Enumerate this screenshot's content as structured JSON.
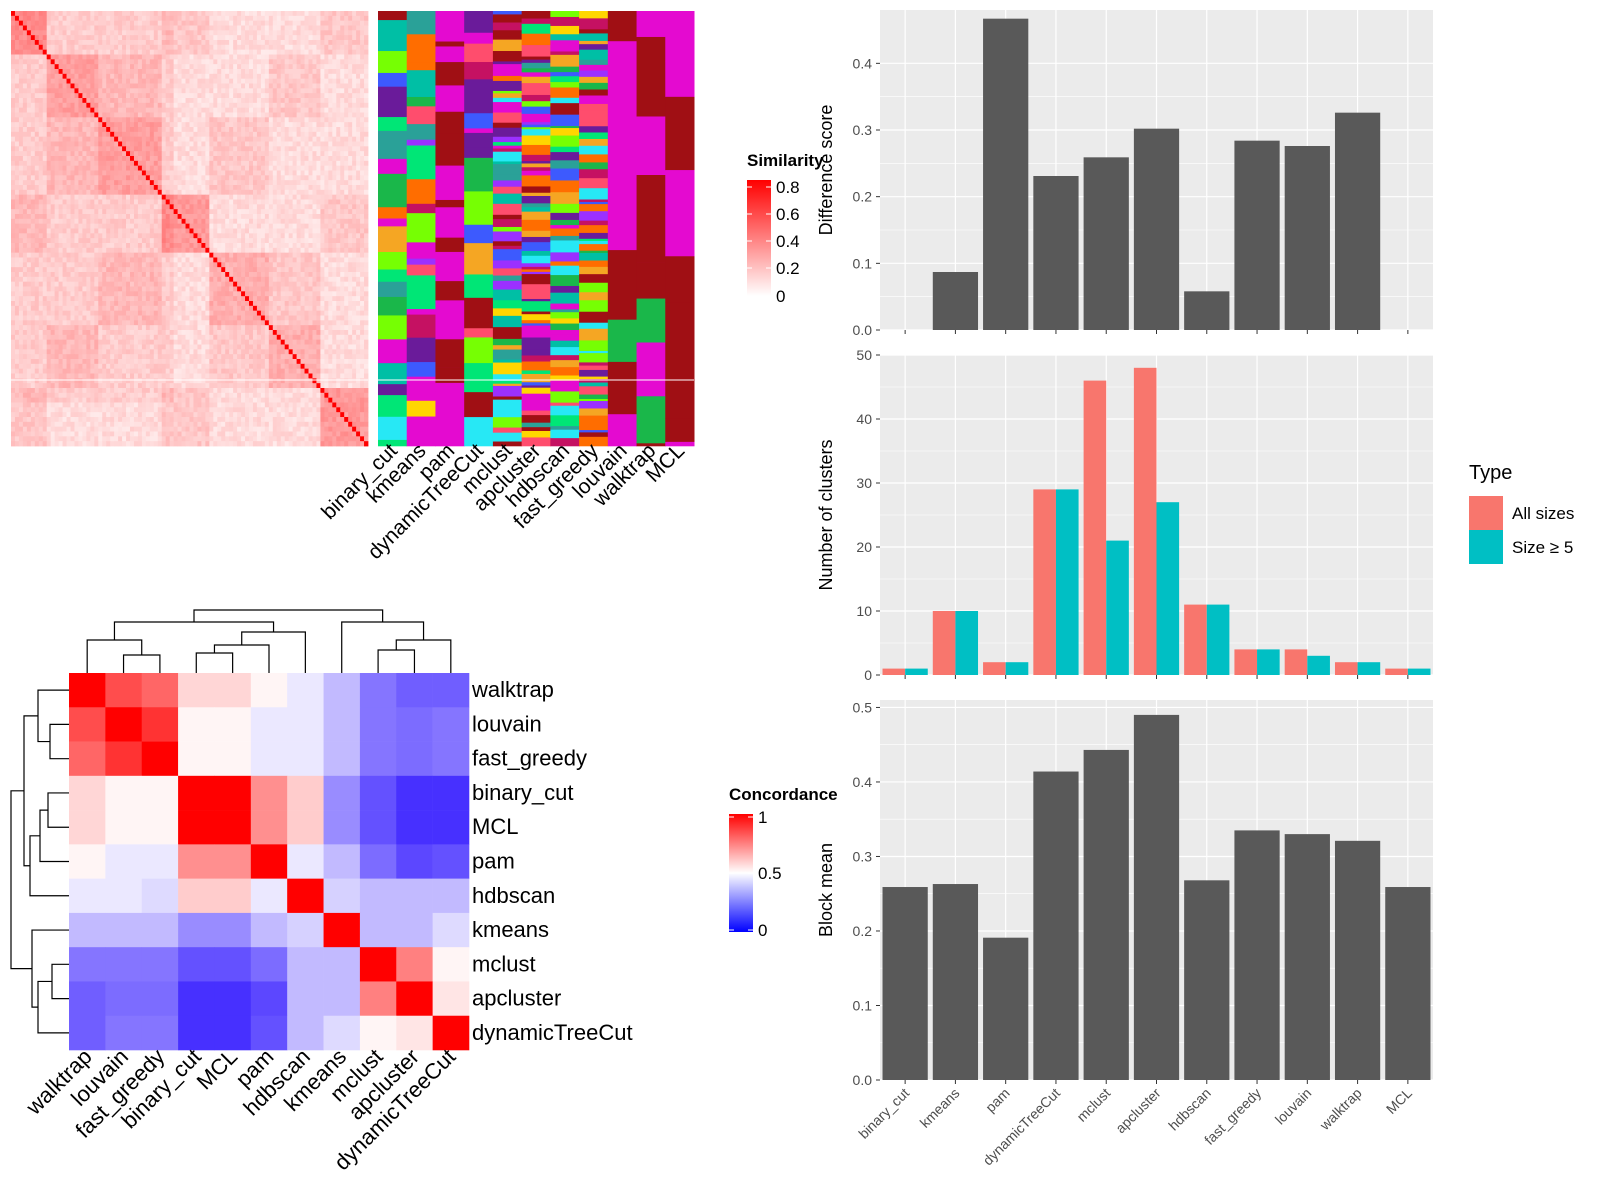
{
  "similarity_legend": {
    "title": "Similarity",
    "ticks": [
      "0.8",
      "0.6",
      "0.4",
      "0.2",
      "0"
    ]
  },
  "concordance_legend": {
    "title": "Concordance",
    "ticks": [
      "1",
      "0.5",
      "0"
    ]
  },
  "type_legend": {
    "title": "Type",
    "items": [
      "All sizes",
      "Size ≥ 5"
    ]
  },
  "colors": {
    "bar_dark": "#595959",
    "all_sizes": "#F8766D",
    "size5": "#00BFC4",
    "panel_bg": "#EBEBEB",
    "grid": "#FFFFFF",
    "sim_high": "#FF0000",
    "sim_low": "#FFFFFF",
    "conc_high": "#FF0000",
    "conc_mid": "#FFFFFF",
    "conc_low": "#0000FF",
    "cluster_bg": "#E40AD0",
    "cluster_dark": "#A00F14"
  },
  "chart_data": [
    {
      "type": "heatmap",
      "title": "",
      "name": "similarity-heatmap",
      "legend_title": "Similarity",
      "color_range": [
        0,
        0.85
      ]
    },
    {
      "type": "heatmap",
      "name": "cluster-assignment-heatmap",
      "columns": [
        "binary_cut",
        "kmeans",
        "pam",
        "dynamicTreeCut",
        "mclust",
        "apcluster",
        "hdbscan",
        "fast_greedy",
        "louvain",
        "walktrap",
        "MCL"
      ]
    },
    {
      "type": "heatmap",
      "name": "concordance-heatmap",
      "legend_title": "Concordance",
      "rows": [
        "walktrap",
        "louvain",
        "fast_greedy",
        "binary_cut",
        "MCL",
        "pam",
        "hdbscan",
        "kmeans",
        "mclust",
        "apcluster",
        "dynamicTreeCut"
      ],
      "cols": [
        "walktrap",
        "louvain",
        "fast_greedy",
        "binary_cut",
        "MCL",
        "pam",
        "hdbscan",
        "kmeans",
        "mclust",
        "apcluster",
        "dynamicTreeCut"
      ],
      "values": [
        [
          1.0,
          0.85,
          0.8,
          0.58,
          0.58,
          0.52,
          0.45,
          0.35,
          0.2,
          0.15,
          0.15
        ],
        [
          0.85,
          1.0,
          0.9,
          0.52,
          0.52,
          0.45,
          0.45,
          0.35,
          0.2,
          0.18,
          0.2
        ],
        [
          0.8,
          0.9,
          1.0,
          0.52,
          0.52,
          0.45,
          0.45,
          0.35,
          0.2,
          0.18,
          0.2
        ],
        [
          0.58,
          0.52,
          0.52,
          1.0,
          1.0,
          0.72,
          0.6,
          0.25,
          0.12,
          0.05,
          0.05
        ],
        [
          0.58,
          0.52,
          0.52,
          1.0,
          1.0,
          0.72,
          0.6,
          0.25,
          0.12,
          0.05,
          0.05
        ],
        [
          0.52,
          0.45,
          0.45,
          0.72,
          0.72,
          1.0,
          0.45,
          0.35,
          0.18,
          0.1,
          0.12
        ],
        [
          0.45,
          0.45,
          0.42,
          0.6,
          0.6,
          0.45,
          1.0,
          0.4,
          0.35,
          0.35,
          0.35
        ],
        [
          0.35,
          0.35,
          0.35,
          0.25,
          0.25,
          0.35,
          0.4,
          1.0,
          0.35,
          0.35,
          0.42
        ],
        [
          0.2,
          0.2,
          0.2,
          0.12,
          0.12,
          0.18,
          0.35,
          0.35,
          1.0,
          0.75,
          0.52
        ],
        [
          0.15,
          0.18,
          0.18,
          0.05,
          0.05,
          0.1,
          0.35,
          0.35,
          0.75,
          1.0,
          0.55
        ],
        [
          0.15,
          0.2,
          0.2,
          0.05,
          0.05,
          0.12,
          0.35,
          0.42,
          0.52,
          0.55,
          1.0
        ]
      ],
      "color_range": [
        0,
        1
      ]
    },
    {
      "type": "bar",
      "name": "difference-score",
      "categories": [
        "binary_cut",
        "kmeans",
        "pam",
        "dynamicTreeCut",
        "mclust",
        "apcluster",
        "hdbscan",
        "fast_greedy",
        "louvain",
        "walktrap",
        "MCL"
      ],
      "values": [
        0,
        0.087,
        0.467,
        0.231,
        0.259,
        0.302,
        0.058,
        0.284,
        0.276,
        0.326,
        0
      ],
      "xlabel": "",
      "ylabel": "Difference score",
      "ylim": [
        0,
        0.48
      ],
      "yticks": [
        0.0,
        0.1,
        0.2,
        0.3,
        0.4
      ],
      "ytick_labels": [
        "0.0",
        "0.1",
        "0.2",
        "0.3",
        "0.4"
      ]
    },
    {
      "type": "bar",
      "name": "number-of-clusters",
      "categories": [
        "binary_cut",
        "kmeans",
        "pam",
        "dynamicTreeCut",
        "mclust",
        "apcluster",
        "hdbscan",
        "fast_greedy",
        "louvain",
        "walktrap",
        "MCL"
      ],
      "series": [
        {
          "name": "All sizes",
          "values": [
            1,
            10,
            2,
            29,
            46,
            48,
            11,
            4,
            4,
            2,
            1
          ]
        },
        {
          "name": "Size ≥ 5",
          "values": [
            1,
            10,
            2,
            29,
            21,
            27,
            11,
            4,
            3,
            2,
            1
          ]
        }
      ],
      "xlabel": "",
      "ylabel": "Number of clusters",
      "ylim": [
        0,
        50
      ],
      "yticks": [
        0,
        10,
        20,
        30,
        40,
        50
      ],
      "ytick_labels": [
        "0",
        "10",
        "20",
        "30",
        "40",
        "50"
      ],
      "legend_position": "right"
    },
    {
      "type": "bar",
      "name": "block-mean",
      "categories": [
        "binary_cut",
        "kmeans",
        "pam",
        "dynamicTreeCut",
        "mclust",
        "apcluster",
        "hdbscan",
        "fast_greedy",
        "louvain",
        "walktrap",
        "MCL"
      ],
      "values": [
        0.259,
        0.263,
        0.191,
        0.414,
        0.443,
        0.49,
        0.268,
        0.335,
        0.33,
        0.321,
        0.259
      ],
      "xlabel": "",
      "ylabel": "Block mean",
      "ylim": [
        0,
        0.51
      ],
      "yticks": [
        0.0,
        0.1,
        0.2,
        0.3,
        0.4,
        0.5
      ],
      "ytick_labels": [
        "0.0",
        "0.1",
        "0.2",
        "0.3",
        "0.4",
        "0.5"
      ]
    }
  ]
}
